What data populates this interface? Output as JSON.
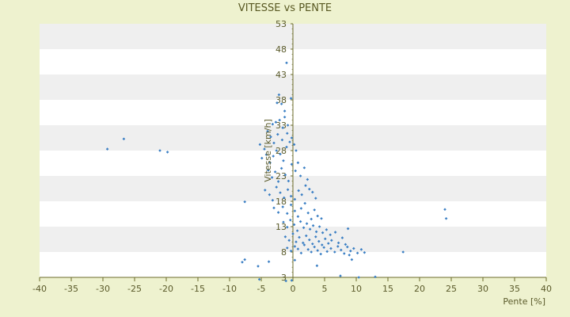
{
  "chart_data": {
    "type": "scatter",
    "title": "VITESSE vs PENTE",
    "xlabel": "Pente [%]",
    "ylabel": "Vitesse [km/h]",
    "xlim": [
      -40,
      40
    ],
    "ylim": [
      3,
      53
    ],
    "x_ticks": [
      -40,
      -35,
      -30,
      -25,
      -20,
      -15,
      -10,
      -5,
      0,
      5,
      10,
      15,
      20,
      25,
      30,
      35,
      40
    ],
    "y_ticks": [
      3,
      8,
      13,
      18,
      23,
      28,
      33,
      38,
      43,
      48,
      53
    ],
    "x_tick_labels": [
      "-40",
      "-35",
      "-30",
      "-25",
      "-20",
      "-15",
      "-10",
      "-5",
      "0",
      "5",
      "10",
      "15",
      "20",
      "25",
      "30",
      "35",
      "40"
    ],
    "y_tick_labels": [
      "3",
      "8",
      "13",
      "18",
      "23",
      "28",
      "33",
      "38",
      "43",
      "48",
      "53"
    ],
    "grid": "horizontal-bands",
    "legend": "none",
    "colors": {
      "point": "#3b7fc4",
      "band_light": "#ffffff",
      "band_dark": "#efefef",
      "axis": "#6b6b2a",
      "background": "#eef2cf"
    },
    "points": [
      [
        -29.3,
        28.3
      ],
      [
        -26.7,
        30.3
      ],
      [
        -21.0,
        28.0
      ],
      [
        -19.8,
        27.7
      ],
      [
        -7.6,
        17.9
      ],
      [
        -8.0,
        6.0
      ],
      [
        -7.6,
        6.5
      ],
      [
        -5.5,
        5.2
      ],
      [
        -5.3,
        2.6
      ],
      [
        -3.8,
        6.1
      ],
      [
        -1.1,
        2.3
      ],
      [
        -0.2,
        2.4
      ],
      [
        0.3,
        6.4
      ],
      [
        3.8,
        5.3
      ],
      [
        7.5,
        3.3
      ],
      [
        10.4,
        3.0
      ],
      [
        13.0,
        3.1
      ],
      [
        24.0,
        16.4
      ],
      [
        24.2,
        14.6
      ],
      [
        17.4,
        8.0
      ],
      [
        -2.2,
        39.0
      ],
      [
        -2.5,
        37.4
      ],
      [
        -1.8,
        37.2
      ],
      [
        -1.3,
        35.8
      ],
      [
        -0.3,
        38.3
      ],
      [
        -1.0,
        45.3
      ],
      [
        -3.2,
        33.2
      ],
      [
        -2.7,
        33.6
      ],
      [
        -2.1,
        34.0
      ],
      [
        -1.6,
        32.5
      ],
      [
        -0.8,
        33.0
      ],
      [
        -1.3,
        34.6
      ],
      [
        -4.0,
        31.8
      ],
      [
        -3.5,
        30.7
      ],
      [
        -3.0,
        29.5
      ],
      [
        -2.4,
        31.2
      ],
      [
        -1.7,
        30.1
      ],
      [
        -0.9,
        31.4
      ],
      [
        -5.2,
        29.2
      ],
      [
        -4.5,
        28.3
      ],
      [
        -4.9,
        26.5
      ],
      [
        -4.2,
        27.2
      ],
      [
        -3.6,
        25.6
      ],
      [
        -3.1,
        26.9
      ],
      [
        -2.6,
        28.0
      ],
      [
        -2.0,
        27.3
      ],
      [
        -1.5,
        26.0
      ],
      [
        -1.0,
        28.7
      ],
      [
        -0.5,
        29.7
      ],
      [
        -0.2,
        30.5
      ],
      [
        0.2,
        29.2
      ],
      [
        0.5,
        28.0
      ],
      [
        -3.9,
        24.1
      ],
      [
        -3.3,
        22.7
      ],
      [
        -2.8,
        23.8
      ],
      [
        -2.3,
        21.9
      ],
      [
        -1.8,
        24.5
      ],
      [
        -1.2,
        23.2
      ],
      [
        -0.7,
        22.0
      ],
      [
        -0.2,
        25.3
      ],
      [
        0.4,
        24.0
      ],
      [
        0.8,
        25.6
      ],
      [
        1.2,
        23.0
      ],
      [
        1.8,
        24.6
      ],
      [
        2.3,
        22.3
      ],
      [
        -4.4,
        20.2
      ],
      [
        -3.7,
        19.3
      ],
      [
        -3.2,
        18.2
      ],
      [
        -2.6,
        20.8
      ],
      [
        -2.0,
        19.7
      ],
      [
        -1.4,
        18.7
      ],
      [
        -0.8,
        20.3
      ],
      [
        -0.3,
        19.0
      ],
      [
        0.3,
        18.4
      ],
      [
        0.9,
        20.1
      ],
      [
        1.4,
        19.3
      ],
      [
        2.0,
        21.1
      ],
      [
        2.6,
        20.4
      ],
      [
        3.1,
        19.8
      ],
      [
        3.6,
        18.6
      ],
      [
        -3.0,
        16.7
      ],
      [
        -2.3,
        15.8
      ],
      [
        -1.6,
        16.9
      ],
      [
        -0.9,
        15.6
      ],
      [
        -0.3,
        17.3
      ],
      [
        0.3,
        16.1
      ],
      [
        0.8,
        15.0
      ],
      [
        1.3,
        16.6
      ],
      [
        1.9,
        17.6
      ],
      [
        2.4,
        15.7
      ],
      [
        2.9,
        14.5
      ],
      [
        3.4,
        16.3
      ],
      [
        3.9,
        15.1
      ],
      [
        4.5,
        14.6
      ],
      [
        -1.5,
        13.9
      ],
      [
        -0.9,
        12.9
      ],
      [
        -0.4,
        14.3
      ],
      [
        0.2,
        13.4
      ],
      [
        0.7,
        12.2
      ],
      [
        1.2,
        14.0
      ],
      [
        1.7,
        12.8
      ],
      [
        2.2,
        13.6
      ],
      [
        2.7,
        12.5
      ],
      [
        3.2,
        13.2
      ],
      [
        3.7,
        12.0
      ],
      [
        4.2,
        13.0
      ],
      [
        4.7,
        11.8
      ],
      [
        5.3,
        12.4
      ],
      [
        5.9,
        11.4
      ],
      [
        -1.2,
        11.0
      ],
      [
        -0.6,
        10.3
      ],
      [
        0.0,
        11.6
      ],
      [
        0.5,
        10.0
      ],
      [
        1.0,
        10.9
      ],
      [
        1.6,
        9.8
      ],
      [
        2.1,
        11.2
      ],
      [
        2.6,
        10.4
      ],
      [
        3.1,
        9.6
      ],
      [
        3.6,
        11.0
      ],
      [
        4.1,
        10.1
      ],
      [
        4.6,
        9.4
      ],
      [
        5.1,
        10.6
      ],
      [
        5.6,
        9.7
      ],
      [
        6.1,
        10.3
      ],
      [
        6.7,
        11.9
      ],
      [
        7.2,
        9.8
      ],
      [
        7.8,
        10.8
      ],
      [
        8.3,
        9.5
      ],
      [
        8.7,
        12.6
      ],
      [
        -0.9,
        8.8
      ],
      [
        -0.3,
        8.2
      ],
      [
        0.3,
        9.1
      ],
      [
        0.8,
        8.6
      ],
      [
        1.3,
        7.8
      ],
      [
        1.8,
        9.4
      ],
      [
        2.4,
        8.5
      ],
      [
        2.9,
        8.0
      ],
      [
        3.4,
        9.0
      ],
      [
        3.9,
        8.3
      ],
      [
        4.4,
        7.6
      ],
      [
        4.9,
        8.9
      ],
      [
        5.4,
        8.1
      ],
      [
        6.0,
        8.7
      ],
      [
        6.6,
        8.0
      ],
      [
        7.1,
        9.1
      ],
      [
        7.6,
        8.4
      ],
      [
        8.1,
        7.7
      ],
      [
        8.6,
        9.0
      ],
      [
        9.1,
        8.2
      ],
      [
        9.6,
        8.7
      ],
      [
        10.2,
        7.8
      ],
      [
        10.8,
        8.5
      ],
      [
        11.3,
        7.9
      ],
      [
        9.3,
        6.5
      ],
      [
        8.9,
        7.4
      ]
    ]
  }
}
